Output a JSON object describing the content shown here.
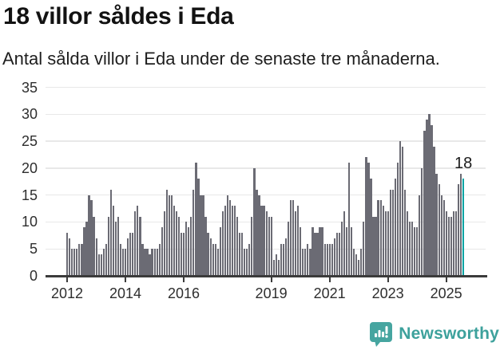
{
  "title": "18 villor såldes i Eda",
  "subtitle": "Antal sålda villor i Eda under de senaste tre månaderna.",
  "logo": {
    "text": "Newsworthy",
    "icon": "newsworthy-speech-bubble-chart-icon",
    "teal": "#3da19c",
    "icon_fill": "#46a5a0"
  },
  "chart_data": {
    "type": "bar",
    "title": "18 villor såldes i Eda",
    "subtitle": "Antal sålda villor i Eda under de senaste tre månaderna.",
    "x_unit": "month",
    "x_start_year": 2012,
    "x_tick_years": [
      2012,
      2014,
      2016,
      2019,
      2021,
      2023,
      2025
    ],
    "y_ticks": [
      0,
      5,
      10,
      15,
      20,
      25,
      30,
      35
    ],
    "ylim": [
      0,
      35
    ],
    "grid": "horizontal",
    "bar_color": "#6b6b74",
    "highlight_color": "#00a3a3",
    "highlight_index": "last",
    "annotation": {
      "text": "18",
      "value": 18
    },
    "values": [
      8,
      7,
      5,
      5,
      5,
      6,
      6,
      9,
      10,
      15,
      14,
      11,
      7,
      4,
      4,
      5,
      6,
      11,
      16,
      13,
      10,
      11,
      6,
      5,
      5,
      7,
      8,
      8,
      12,
      13,
      11,
      6,
      5,
      5,
      4,
      5,
      5,
      5,
      6,
      9,
      12,
      16,
      15,
      15,
      13,
      12,
      11,
      8,
      8,
      10,
      9,
      11,
      16,
      21,
      18,
      15,
      15,
      11,
      8,
      7,
      6,
      6,
      5,
      9,
      12,
      13,
      15,
      14,
      13,
      13,
      11,
      8,
      8,
      5,
      5,
      6,
      11,
      20,
      16,
      15,
      13,
      13,
      12,
      11,
      11,
      3,
      4,
      3,
      6,
      6,
      7,
      10,
      14,
      14,
      12,
      13,
      9,
      5,
      5,
      6,
      5,
      9,
      8,
      8,
      9,
      9,
      6,
      6,
      6,
      6,
      7,
      8,
      8,
      10,
      12,
      9,
      21,
      9,
      5,
      4,
      3,
      5,
      10,
      22,
      21,
      18,
      11,
      11,
      14,
      14,
      13,
      12,
      12,
      16,
      16,
      18,
      21,
      25,
      24,
      16,
      12,
      10,
      10,
      9,
      9,
      15,
      20,
      27,
      29,
      30,
      28,
      24,
      19,
      17,
      15,
      14,
      12,
      11,
      11,
      12,
      12,
      17,
      19,
      18
    ]
  }
}
